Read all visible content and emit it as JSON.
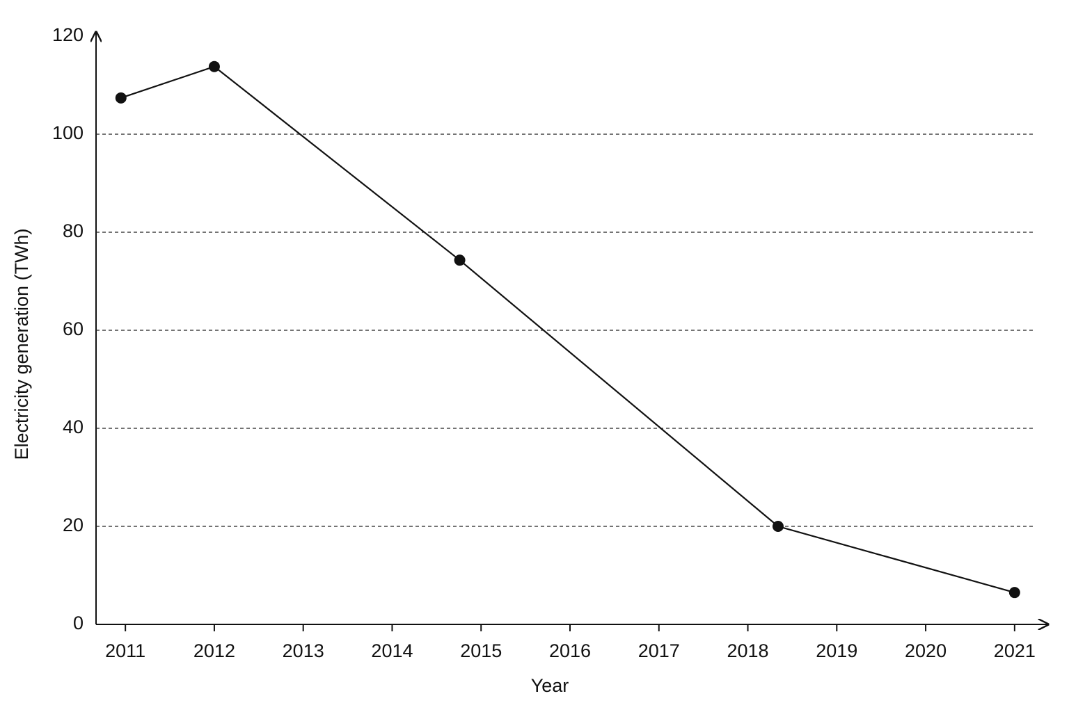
{
  "chart_data": {
    "type": "line",
    "x_label": "Year",
    "y_label": "Electricity generation (TWh)",
    "x": [
      2010.95,
      2012,
      2014.76,
      2018.34,
      2021
    ],
    "series": [
      {
        "color": "#111111",
        "values": [
          107.4,
          113.8,
          74.3,
          20,
          6.5
        ]
      }
    ],
    "xlim": [
      2010.67,
      2021.33
    ],
    "xticks": [
      2011,
      2012,
      2013,
      2014,
      2015,
      2016,
      2017,
      2018,
      2019,
      2020,
      2021
    ],
    "ylim": [
      0,
      120
    ],
    "yticks": [
      0,
      20,
      40,
      60,
      80,
      100,
      120
    ],
    "grid": true
  }
}
